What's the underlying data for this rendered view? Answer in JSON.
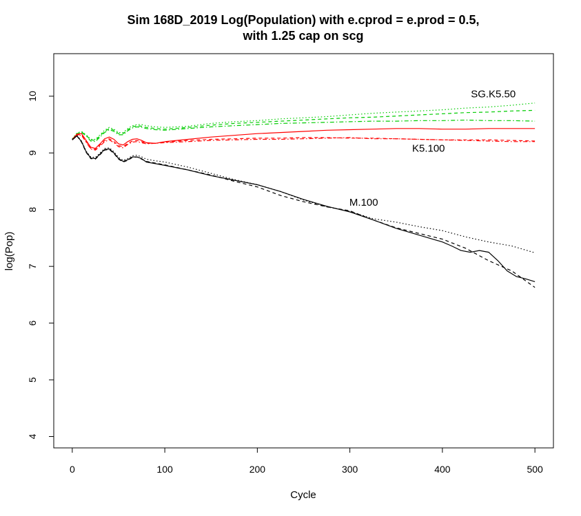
{
  "chart_data": {
    "type": "line",
    "title": "Sim 168D_2019 Log(Population) with e.cprod = e.prod = 0.5,",
    "subtitle": "with 1.25 cap on scg",
    "xlabel": "Cycle",
    "ylabel": "log(Pop)",
    "xlim": [
      -20,
      520
    ],
    "ylim": [
      3.8,
      10.75
    ],
    "xticks": [
      0,
      100,
      200,
      300,
      400,
      500
    ],
    "yticks": [
      4,
      5,
      6,
      7,
      8,
      9,
      10
    ],
    "grid": false,
    "legend": "none",
    "annotations": [
      {
        "text": "SG.K5.50",
        "x": 455,
        "y": 10.03
      },
      {
        "text": "K5.100",
        "x": 385,
        "y": 9.07
      },
      {
        "text": "M.100",
        "x": 315,
        "y": 8.12
      }
    ],
    "series": [
      {
        "color": "#00cc00",
        "dash": "dotted",
        "x": [
          0,
          5,
          10,
          15,
          20,
          25,
          30,
          35,
          40,
          45,
          50,
          55,
          60,
          65,
          70,
          75,
          80,
          90,
          100,
          125,
          150,
          175,
          200,
          225,
          250,
          275,
          300,
          325,
          350,
          375,
          400,
          425,
          450,
          475,
          500
        ],
        "y": [
          9.25,
          9.35,
          9.38,
          9.32,
          9.24,
          9.24,
          9.32,
          9.4,
          9.45,
          9.42,
          9.36,
          9.36,
          9.43,
          9.48,
          9.5,
          9.5,
          9.48,
          9.46,
          9.45,
          9.47,
          9.52,
          9.55,
          9.57,
          9.6,
          9.62,
          9.64,
          9.67,
          9.7,
          9.72,
          9.74,
          9.76,
          9.79,
          9.81,
          9.84,
          9.88
        ]
      },
      {
        "color": "#00cc00",
        "dash": "dashed",
        "x": [
          0,
          5,
          10,
          15,
          20,
          25,
          30,
          35,
          40,
          45,
          50,
          55,
          60,
          65,
          70,
          75,
          80,
          90,
          100,
          125,
          150,
          175,
          200,
          225,
          250,
          275,
          300,
          325,
          350,
          375,
          400,
          425,
          450,
          475,
          500
        ],
        "y": [
          9.24,
          9.34,
          9.37,
          9.31,
          9.23,
          9.22,
          9.3,
          9.38,
          9.43,
          9.4,
          9.34,
          9.34,
          9.41,
          9.46,
          9.48,
          9.47,
          9.45,
          9.43,
          9.42,
          9.45,
          9.49,
          9.52,
          9.54,
          9.56,
          9.58,
          9.6,
          9.62,
          9.63,
          9.65,
          9.67,
          9.69,
          9.71,
          9.72,
          9.74,
          9.75
        ]
      },
      {
        "color": "#00cc00",
        "dash": "dotdash",
        "x": [
          0,
          5,
          10,
          15,
          20,
          25,
          30,
          35,
          40,
          45,
          50,
          55,
          60,
          65,
          70,
          75,
          80,
          90,
          100,
          125,
          150,
          175,
          200,
          225,
          250,
          275,
          300,
          325,
          350,
          375,
          400,
          425,
          450,
          475,
          500
        ],
        "y": [
          9.23,
          9.33,
          9.36,
          9.3,
          9.21,
          9.2,
          9.28,
          9.36,
          9.41,
          9.38,
          9.32,
          9.32,
          9.39,
          9.44,
          9.46,
          9.45,
          9.43,
          9.41,
          9.4,
          9.43,
          9.46,
          9.48,
          9.5,
          9.52,
          9.53,
          9.54,
          9.55,
          9.56,
          9.56,
          9.57,
          9.57,
          9.58,
          9.57,
          9.57,
          9.56
        ]
      },
      {
        "color": "#ff0000",
        "dash": "solid",
        "x": [
          0,
          5,
          10,
          15,
          20,
          25,
          30,
          35,
          40,
          45,
          50,
          55,
          60,
          65,
          70,
          75,
          80,
          90,
          100,
          125,
          150,
          175,
          200,
          225,
          250,
          275,
          300,
          325,
          350,
          375,
          400,
          425,
          450,
          475,
          500
        ],
        "y": [
          9.24,
          9.33,
          9.34,
          9.22,
          9.1,
          9.08,
          9.16,
          9.25,
          9.28,
          9.24,
          9.16,
          9.14,
          9.2,
          9.24,
          9.25,
          9.22,
          9.18,
          9.17,
          9.2,
          9.24,
          9.28,
          9.31,
          9.34,
          9.36,
          9.38,
          9.4,
          9.41,
          9.42,
          9.43,
          9.43,
          9.42,
          9.42,
          9.43,
          9.43,
          9.43
        ]
      },
      {
        "color": "#ff0000",
        "dash": "dashed",
        "x": [
          0,
          5,
          10,
          15,
          20,
          25,
          30,
          35,
          40,
          45,
          50,
          55,
          60,
          65,
          70,
          75,
          80,
          90,
          100,
          125,
          150,
          175,
          200,
          225,
          250,
          275,
          300,
          325,
          350,
          375,
          400,
          425,
          450,
          475,
          500
        ],
        "y": [
          9.23,
          9.32,
          9.32,
          9.2,
          9.08,
          9.06,
          9.14,
          9.22,
          9.25,
          9.2,
          9.13,
          9.11,
          9.17,
          9.21,
          9.22,
          9.2,
          9.17,
          9.17,
          9.19,
          9.22,
          9.24,
          9.25,
          9.26,
          9.26,
          9.27,
          9.27,
          9.26,
          9.26,
          9.25,
          9.24,
          9.23,
          9.23,
          9.23,
          9.22,
          9.21
        ]
      },
      {
        "color": "#ff0000",
        "dash": "dotdash",
        "x": [
          0,
          5,
          10,
          15,
          20,
          25,
          30,
          35,
          40,
          45,
          50,
          55,
          60,
          65,
          70,
          75,
          80,
          90,
          100,
          125,
          150,
          175,
          200,
          225,
          250,
          275,
          300,
          325,
          350,
          375,
          400,
          425,
          450,
          475,
          500
        ],
        "y": [
          9.23,
          9.31,
          9.31,
          9.19,
          9.07,
          9.05,
          9.12,
          9.2,
          9.23,
          9.18,
          9.11,
          9.09,
          9.15,
          9.19,
          9.2,
          9.18,
          9.16,
          9.17,
          9.18,
          9.2,
          9.22,
          9.23,
          9.24,
          9.24,
          9.25,
          9.26,
          9.27,
          9.25,
          9.25,
          9.24,
          9.23,
          9.22,
          9.21,
          9.2,
          9.2
        ]
      },
      {
        "color": "#000000",
        "dash": "solid",
        "x": [
          0,
          5,
          10,
          15,
          20,
          25,
          30,
          35,
          40,
          45,
          50,
          55,
          60,
          65,
          70,
          75,
          80,
          90,
          100,
          125,
          150,
          175,
          200,
          225,
          250,
          275,
          300,
          325,
          350,
          375,
          400,
          410,
          420,
          430,
          440,
          450,
          460,
          470,
          480,
          490,
          500
        ],
        "y": [
          9.23,
          9.3,
          9.2,
          9.02,
          8.91,
          8.9,
          8.98,
          9.06,
          9.07,
          9.0,
          8.9,
          8.85,
          8.88,
          8.93,
          8.93,
          8.9,
          8.84,
          8.81,
          8.78,
          8.7,
          8.6,
          8.52,
          8.44,
          8.32,
          8.18,
          8.06,
          7.96,
          7.82,
          7.67,
          7.55,
          7.43,
          7.36,
          7.28,
          7.25,
          7.28,
          7.25,
          7.1,
          6.92,
          6.82,
          6.78,
          6.73
        ]
      },
      {
        "color": "#000000",
        "dash": "dashed",
        "x": [
          0,
          5,
          10,
          15,
          20,
          25,
          30,
          35,
          40,
          45,
          50,
          55,
          60,
          65,
          70,
          75,
          80,
          90,
          100,
          125,
          150,
          175,
          200,
          225,
          250,
          275,
          300,
          325,
          350,
          375,
          400,
          425,
          450,
          475,
          500
        ],
        "y": [
          9.23,
          9.3,
          9.19,
          9.01,
          8.9,
          8.89,
          8.97,
          9.05,
          9.06,
          8.99,
          8.89,
          8.84,
          8.87,
          8.92,
          8.93,
          8.89,
          8.85,
          8.82,
          8.79,
          8.7,
          8.61,
          8.5,
          8.4,
          8.25,
          8.14,
          8.05,
          7.98,
          7.82,
          7.68,
          7.58,
          7.48,
          7.32,
          7.1,
          6.92,
          6.63
        ]
      },
      {
        "color": "#000000",
        "dash": "dotted",
        "x": [
          0,
          5,
          10,
          15,
          20,
          25,
          30,
          35,
          40,
          45,
          50,
          55,
          60,
          65,
          70,
          75,
          80,
          90,
          100,
          125,
          150,
          175,
          200,
          225,
          250,
          275,
          300,
          325,
          350,
          375,
          400,
          425,
          450,
          475,
          500
        ],
        "y": [
          9.24,
          9.31,
          9.21,
          9.03,
          8.93,
          8.92,
          9.0,
          9.08,
          9.09,
          9.02,
          8.92,
          8.87,
          8.9,
          8.95,
          8.96,
          8.93,
          8.89,
          8.86,
          8.84,
          8.75,
          8.64,
          8.53,
          8.44,
          8.32,
          8.17,
          8.05,
          7.97,
          7.84,
          7.78,
          7.7,
          7.63,
          7.52,
          7.43,
          7.36,
          7.24
        ]
      }
    ]
  }
}
